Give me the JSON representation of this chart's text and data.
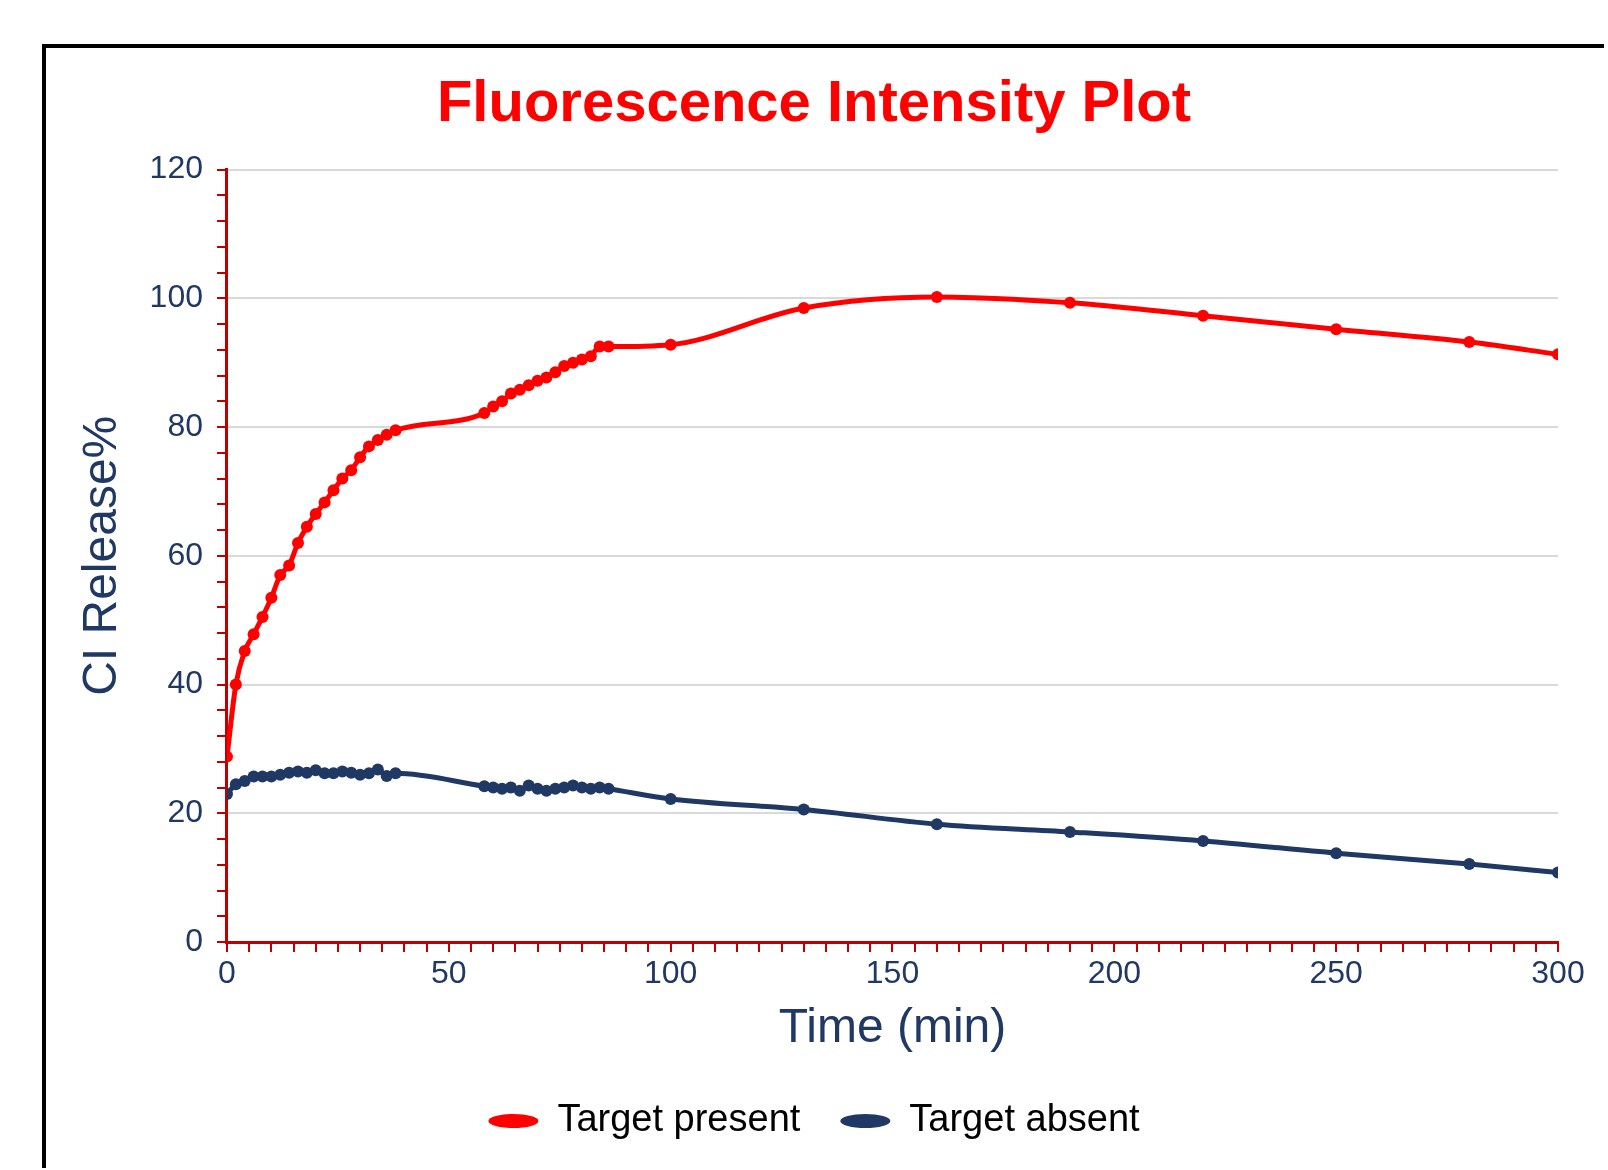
{
  "chart_data": {
    "type": "line",
    "title": "Fluorescence Intensity Plot",
    "xlabel": "Time (min)",
    "ylabel": "CI Release%",
    "xlim": [
      0,
      300
    ],
    "ylim": [
      0,
      120
    ],
    "xticks": [
      0,
      {
        "value": 5,
        "label": null
      },
      {
        "value": 10,
        "label": null
      },
      {
        "value": 15,
        "label": null
      },
      {
        "value": 20,
        "label": null
      },
      {
        "value": 25,
        "label": null
      },
      {
        "value": 30,
        "label": null
      },
      {
        "value": 35,
        "label": null
      },
      {
        "value": 40,
        "label": null
      },
      {
        "value": 45,
        "label": null
      },
      50,
      {
        "value": 55,
        "label": null
      },
      {
        "value": 60,
        "label": null
      },
      {
        "value": 65,
        "label": null
      },
      {
        "value": 70,
        "label": null
      },
      {
        "value": 75,
        "label": null
      },
      {
        "value": 80,
        "label": null
      },
      {
        "value": 85,
        "label": null
      },
      {
        "value": 90,
        "label": null
      },
      {
        "value": 95,
        "label": null
      },
      100,
      {
        "value": 105,
        "label": null
      },
      {
        "value": 110,
        "label": null
      },
      {
        "value": 115,
        "label": null
      },
      {
        "value": 120,
        "label": null
      },
      {
        "value": 125,
        "label": null
      },
      {
        "value": 130,
        "label": null
      },
      {
        "value": 135,
        "label": null
      },
      {
        "value": 140,
        "label": null
      },
      {
        "value": 145,
        "label": null
      },
      150,
      {
        "value": 155,
        "label": null
      },
      {
        "value": 160,
        "label": null
      },
      {
        "value": 165,
        "label": null
      },
      {
        "value": 170,
        "label": null
      },
      {
        "value": 175,
        "label": null
      },
      {
        "value": 180,
        "label": null
      },
      {
        "value": 185,
        "label": null
      },
      {
        "value": 190,
        "label": null
      },
      {
        "value": 195,
        "label": null
      },
      200,
      {
        "value": 205,
        "label": null
      },
      {
        "value": 210,
        "label": null
      },
      {
        "value": 215,
        "label": null
      },
      {
        "value": 220,
        "label": null
      },
      {
        "value": 225,
        "label": null
      },
      {
        "value": 230,
        "label": null
      },
      {
        "value": 235,
        "label": null
      },
      {
        "value": 240,
        "label": null
      },
      {
        "value": 245,
        "label": null
      },
      250,
      {
        "value": 255,
        "label": null
      },
      {
        "value": 260,
        "label": null
      },
      {
        "value": 265,
        "label": null
      },
      {
        "value": 270,
        "label": null
      },
      {
        "value": 275,
        "label": null
      },
      {
        "value": 280,
        "label": null
      },
      {
        "value": 285,
        "label": null
      },
      {
        "value": 290,
        "label": null
      },
      {
        "value": 295,
        "label": null
      },
      300
    ],
    "yticks": [
      0,
      {
        "value": 4,
        "label": null
      },
      {
        "value": 8,
        "label": null
      },
      {
        "value": 12,
        "label": null
      },
      {
        "value": 16,
        "label": null
      },
      20,
      {
        "value": 24,
        "label": null
      },
      {
        "value": 28,
        "label": null
      },
      {
        "value": 32,
        "label": null
      },
      {
        "value": 36,
        "label": null
      },
      40,
      {
        "value": 44,
        "label": null
      },
      {
        "value": 48,
        "label": null
      },
      {
        "value": 52,
        "label": null
      },
      {
        "value": 56,
        "label": null
      },
      60,
      {
        "value": 64,
        "label": null
      },
      {
        "value": 68,
        "label": null
      },
      {
        "value": 72,
        "label": null
      },
      {
        "value": 76,
        "label": null
      },
      80,
      {
        "value": 84,
        "label": null
      },
      {
        "value": 88,
        "label": null
      },
      {
        "value": 92,
        "label": null
      },
      {
        "value": 96,
        "label": null
      },
      100,
      {
        "value": 104,
        "label": null
      },
      {
        "value": 108,
        "label": null
      },
      {
        "value": 112,
        "label": null
      },
      {
        "value": 116,
        "label": null
      },
      120
    ],
    "x": [
      0,
      2,
      4,
      6,
      8,
      10,
      12,
      14,
      16,
      18,
      20,
      22,
      24,
      26,
      28,
      30,
      32,
      34,
      36,
      38,
      58,
      60,
      62,
      64,
      66,
      68,
      70,
      72,
      74,
      76,
      78,
      80,
      82,
      84,
      86,
      100,
      130,
      160,
      190,
      220,
      250,
      280,
      300
    ],
    "series": [
      {
        "name": "Target present",
        "color": "#ff0000",
        "values": [
          28.8,
          40,
          45.2,
          47.8,
          50.5,
          53.5,
          57,
          58.5,
          62,
          64.5,
          66.5,
          68.3,
          70.2,
          72,
          73.3,
          75.3,
          77,
          78,
          78.8,
          79.5,
          82.2,
          83.2,
          84,
          85.2,
          85.8,
          86.5,
          87.2,
          87.7,
          88.5,
          89.5,
          90,
          90.5,
          91,
          92.5,
          92.5,
          92.8,
          98.5,
          100.2,
          99.3,
          97.3,
          95.2,
          93.2,
          91.3
        ]
      },
      {
        "name": "Target absent",
        "color": "#203864",
        "values": [
          23,
          24.5,
          25,
          25.7,
          25.7,
          25.7,
          26,
          26.3,
          26.5,
          26.3,
          26.7,
          26.2,
          26.2,
          26.5,
          26.3,
          26,
          26.2,
          26.8,
          25.8,
          26.2,
          24.2,
          24,
          23.8,
          24,
          23.5,
          24.3,
          23.8,
          23.5,
          23.8,
          24,
          24.3,
          24,
          23.8,
          24,
          23.8,
          22.2,
          20.6,
          18.3,
          17.1,
          15.7,
          13.8,
          12.1,
          10.8
        ]
      }
    ],
    "grid": "y",
    "legend": "bottom",
    "marker": "circle",
    "line_style": "solid"
  }
}
